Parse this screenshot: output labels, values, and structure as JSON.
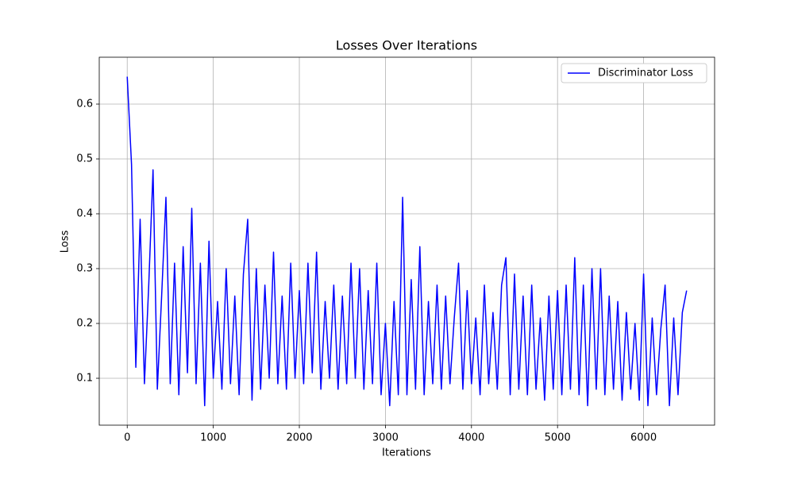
{
  "chart_data": {
    "type": "line",
    "title": "Losses Over Iterations",
    "xlabel": "Iterations",
    "ylabel": "Loss",
    "x": [
      0,
      50,
      100,
      150,
      200,
      250,
      300,
      350,
      400,
      450,
      500,
      550,
      600,
      650,
      700,
      750,
      800,
      850,
      900,
      950,
      1000,
      1050,
      1100,
      1150,
      1200,
      1250,
      1300,
      1350,
      1400,
      1450,
      1500,
      1550,
      1600,
      1650,
      1700,
      1750,
      1800,
      1850,
      1900,
      1950,
      2000,
      2050,
      2100,
      2150,
      2200,
      2250,
      2300,
      2350,
      2400,
      2450,
      2500,
      2550,
      2600,
      2650,
      2700,
      2750,
      2800,
      2850,
      2900,
      2950,
      3000,
      3050,
      3100,
      3150,
      3200,
      3250,
      3300,
      3350,
      3400,
      3450,
      3500,
      3550,
      3600,
      3650,
      3700,
      3750,
      3800,
      3850,
      3900,
      3950,
      4000,
      4050,
      4100,
      4150,
      4200,
      4250,
      4300,
      4350,
      4400,
      4450,
      4500,
      4550,
      4600,
      4650,
      4700,
      4750,
      4800,
      4850,
      4900,
      4950,
      5000,
      5050,
      5100,
      5150,
      5200,
      5250,
      5300,
      5350,
      5400,
      5450,
      5500,
      5550,
      5600,
      5650,
      5700,
      5750,
      5800,
      5850,
      5900,
      5950,
      6000,
      6050,
      6100,
      6150,
      6200,
      6250,
      6300,
      6350,
      6400,
      6450,
      6500
    ],
    "series": [
      {
        "name": "Discriminator Loss",
        "color": "#0000ff",
        "values": [
          0.65,
          0.49,
          0.12,
          0.39,
          0.09,
          0.27,
          0.48,
          0.08,
          0.25,
          0.43,
          0.09,
          0.31,
          0.07,
          0.34,
          0.11,
          0.41,
          0.09,
          0.31,
          0.05,
          0.35,
          0.1,
          0.24,
          0.08,
          0.3,
          0.09,
          0.25,
          0.07,
          0.29,
          0.39,
          0.06,
          0.3,
          0.08,
          0.27,
          0.1,
          0.33,
          0.09,
          0.25,
          0.08,
          0.31,
          0.1,
          0.26,
          0.09,
          0.31,
          0.11,
          0.33,
          0.08,
          0.24,
          0.1,
          0.27,
          0.08,
          0.25,
          0.09,
          0.31,
          0.1,
          0.3,
          0.08,
          0.26,
          0.09,
          0.31,
          0.07,
          0.2,
          0.05,
          0.24,
          0.07,
          0.43,
          0.07,
          0.28,
          0.08,
          0.34,
          0.07,
          0.24,
          0.09,
          0.27,
          0.08,
          0.25,
          0.09,
          0.21,
          0.31,
          0.08,
          0.26,
          0.09,
          0.21,
          0.07,
          0.27,
          0.09,
          0.22,
          0.08,
          0.27,
          0.32,
          0.07,
          0.29,
          0.08,
          0.25,
          0.07,
          0.27,
          0.08,
          0.21,
          0.06,
          0.25,
          0.08,
          0.26,
          0.07,
          0.27,
          0.08,
          0.32,
          0.07,
          0.27,
          0.05,
          0.3,
          0.08,
          0.3,
          0.07,
          0.25,
          0.08,
          0.24,
          0.06,
          0.22,
          0.08,
          0.2,
          0.06,
          0.29,
          0.05,
          0.21,
          0.07,
          0.19,
          0.27,
          0.05,
          0.21,
          0.07,
          0.22,
          0.26
        ]
      }
    ],
    "xlim": [
      -325,
      6825
    ],
    "ylim": [
      0.0145,
      0.6855
    ],
    "xticks": [
      0,
      1000,
      2000,
      3000,
      4000,
      5000,
      6000
    ],
    "yticks": [
      0.1,
      0.2,
      0.3,
      0.4,
      0.5,
      0.6
    ],
    "grid": true,
    "legend": "upper right"
  }
}
